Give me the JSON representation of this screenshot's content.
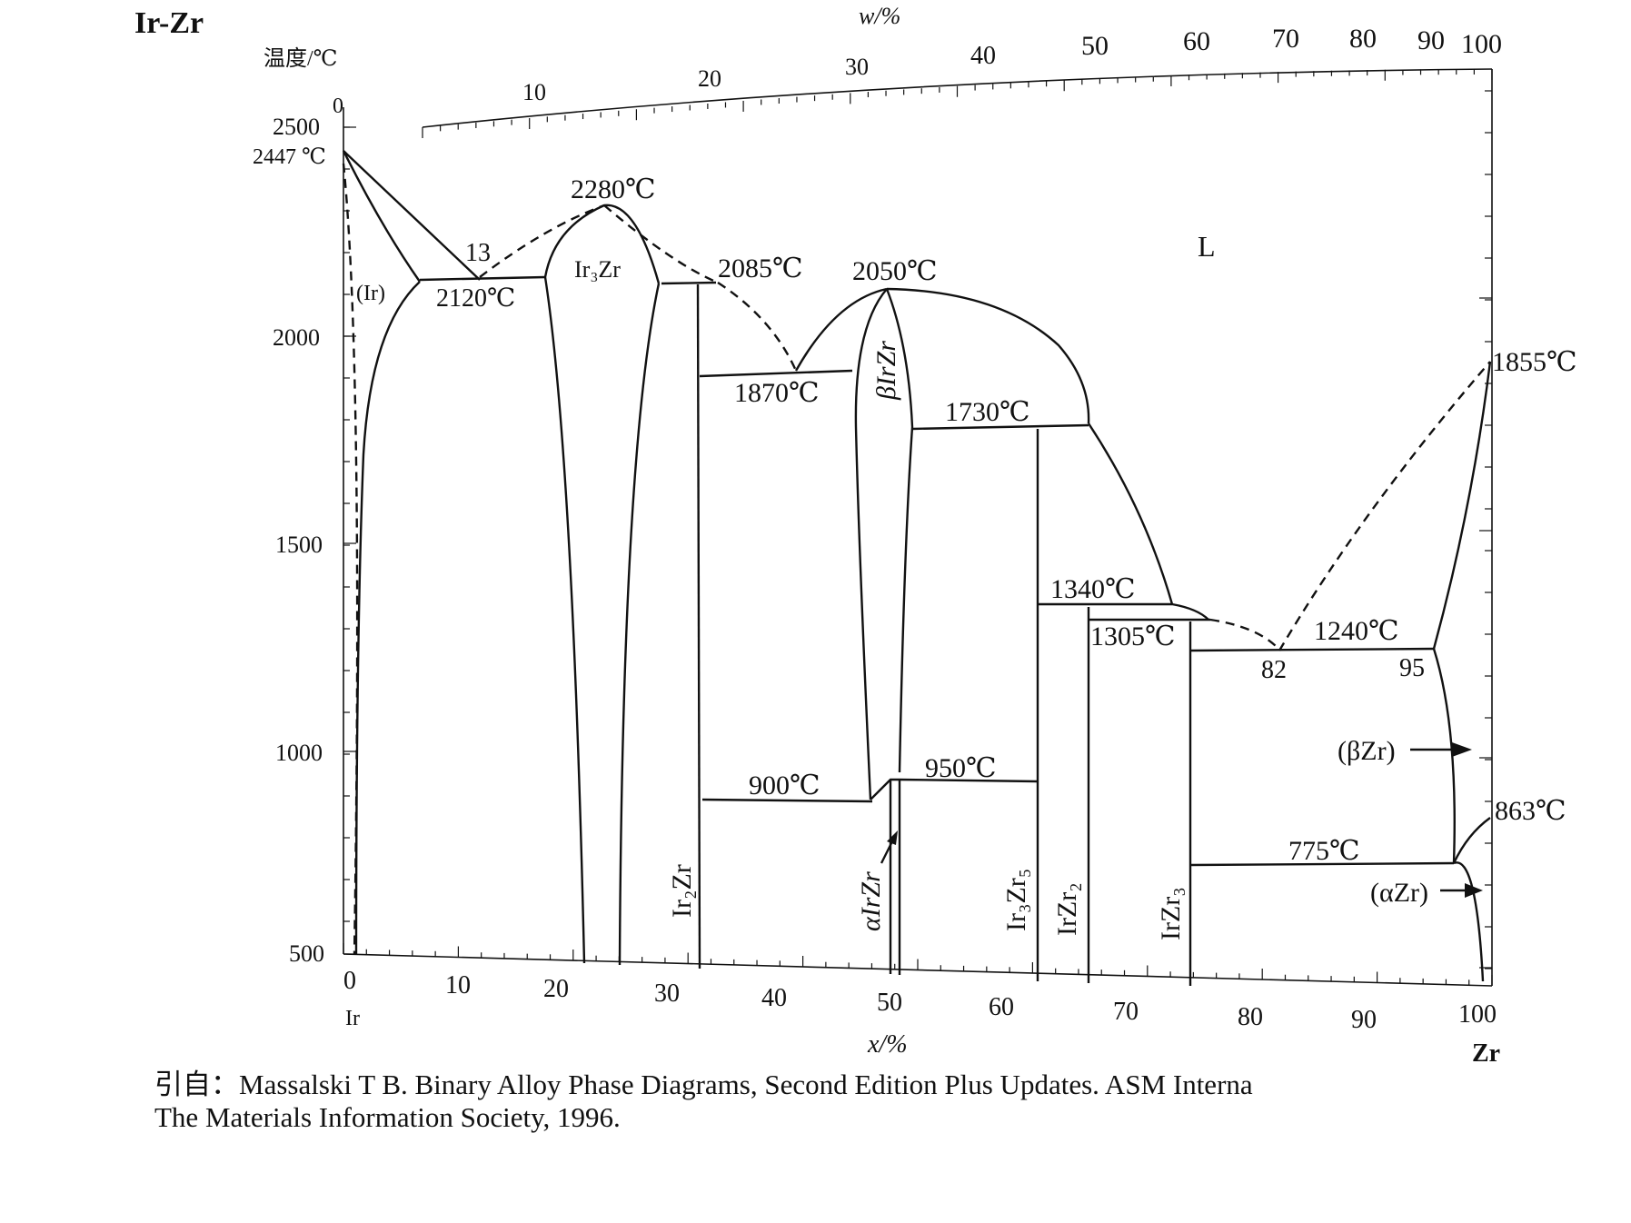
{
  "title": "Ir-Zr",
  "chart_data": {
    "type": "phase-diagram",
    "system": "Ir-Zr",
    "ylabel": "温度/℃",
    "xlabel": "x/%",
    "top_axis_label": "w/%",
    "ylim": [
      500,
      2500
    ],
    "y_ticks": [
      "500",
      "1000",
      "1500",
      "2000",
      "2500"
    ],
    "x_ticks": [
      "0",
      "10",
      "20",
      "30",
      "40",
      "50",
      "60",
      "70",
      "80",
      "90",
      "100"
    ],
    "top_ticks": [
      "0",
      "10",
      "20",
      "30",
      "40",
      "50",
      "60",
      "70",
      "80",
      "90",
      "100"
    ],
    "x_left_element": "Ir",
    "x_right_element": "Zr",
    "ir_melting_label": "2447 ℃",
    "temperatures": {
      "t2280": "2280℃",
      "t2120": "2120℃",
      "t2085": "2085℃",
      "t2050": "2050℃",
      "t1870": "1870℃",
      "t1730": "1730℃",
      "t1340": "1340℃",
      "t1305": "1305℃",
      "t1240": "1240℃",
      "t1855": "1855℃",
      "t900": "900℃",
      "t950": "950℃",
      "t863": "863℃",
      "t775": "775℃"
    },
    "compositions": {
      "c13": "13",
      "c82": "82",
      "c95": "95"
    },
    "phases": {
      "liquid": "L",
      "ir_solid": "(Ir)",
      "ir3zr": "Ir₃Zr",
      "ir2zr": "Ir₂Zr",
      "beta_irzr": "βIrZr",
      "alpha_irzr": "αIrZr",
      "ir3zr5": "Ir₃Zr₅",
      "irzr2": "IrZr₂",
      "irzr3": "IrZr₃",
      "beta_zr": "(βZr)",
      "alpha_zr": "(αZr)"
    },
    "invariants": [
      {
        "T": 2447,
        "x": 0,
        "kind": "melting Ir"
      },
      {
        "T": 2280,
        "x": 25,
        "kind": "congruent Ir3Zr"
      },
      {
        "T": 2120,
        "x": 13,
        "kind": "eutectic"
      },
      {
        "T": 2085,
        "x": 33.3,
        "kind": "peritectic Ir2Zr"
      },
      {
        "T": 1870,
        "x": 41,
        "kind": "eutectic"
      },
      {
        "T": 2050,
        "x": 50,
        "kind": "congruent IrZr"
      },
      {
        "T": 1730,
        "x": 62.5,
        "kind": "peritectic Ir3Zr5"
      },
      {
        "T": 1340,
        "x": 66.7,
        "kind": "peritectic IrZr2"
      },
      {
        "T": 1305,
        "x": 75,
        "kind": "peritectic IrZr3"
      },
      {
        "T": 1240,
        "x": 82,
        "kind": "eutectic"
      },
      {
        "T": 1855,
        "x": 100,
        "kind": "melting Zr"
      },
      {
        "T": 950,
        "x": 51,
        "kind": "transformation"
      },
      {
        "T": 900,
        "x": 48,
        "kind": "eutectoid"
      },
      {
        "T": 863,
        "x": 100,
        "kind": "allotropic Zr"
      },
      {
        "T": 775,
        "x": 97,
        "kind": "eutectoid"
      }
    ]
  },
  "citation": {
    "line1": "引自：Massalski T B.  Binary Alloy Phase Diagrams,  Second Edition Plus Updates.  ASM Interna",
    "line2": "The Materials Information Society, 1996."
  }
}
